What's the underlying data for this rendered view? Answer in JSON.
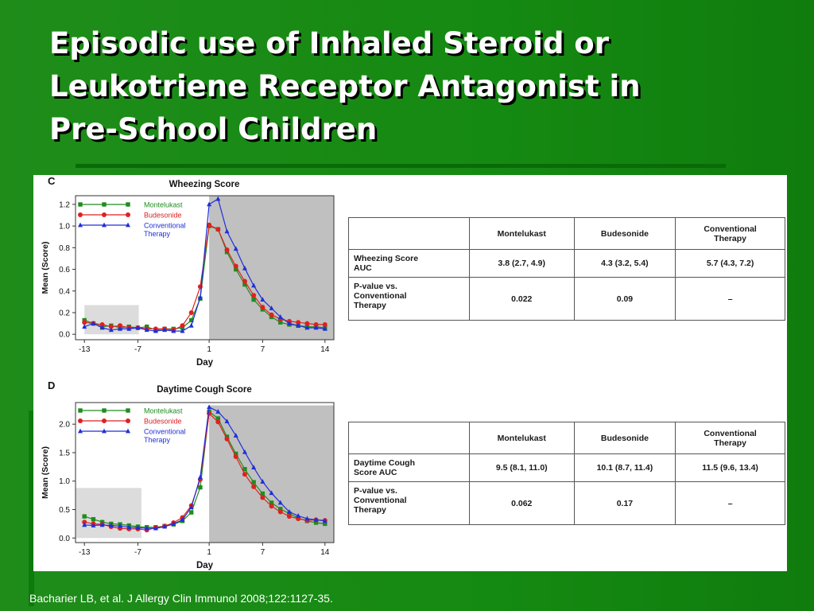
{
  "slide": {
    "title_lines": [
      "Episodic use of Inhaled Steroid or",
      "Leukotriene Receptor Antagonist in",
      "Pre-School Children"
    ],
    "citation": "Bacharier LB, et al. J Allergy Clin Immunol 2008;122:1127-35."
  },
  "tables": [
    {
      "headers": [
        "",
        "Montelukast",
        "Budesonide",
        "Conventional\nTherapy"
      ],
      "rows": [
        {
          "label": "Wheezing Score\nAUC",
          "cells": [
            "3.8 (2.7, 4.9)",
            "4.3 (3.2, 5.4)",
            "5.7 (4.3, 7.2)"
          ]
        },
        {
          "label": "P-value vs.\nConventional\nTherapy",
          "cells": [
            "0.022",
            "0.09",
            "–"
          ]
        }
      ]
    },
    {
      "headers": [
        "",
        "Montelukast",
        "Budesonide",
        "Conventional\nTherapy"
      ],
      "rows": [
        {
          "label": "Daytime Cough\nScore AUC",
          "cells": [
            "9.5 (8.1, 11.0)",
            "10.1 (8.7, 11.4)",
            "11.5 (9.6, 13.4)"
          ]
        },
        {
          "label": "P-value vs.\nConventional\nTherapy",
          "cells": [
            "0.062",
            "0.17",
            "–"
          ]
        }
      ]
    }
  ],
  "chart_data": [
    {
      "type": "line",
      "panel_letter": "C",
      "title": "Wheezing Score",
      "xlabel": "Day",
      "ylabel": "Mean (Score)",
      "x_ticks": [
        -13,
        -7,
        1,
        7,
        14
      ],
      "y_ticks": [
        "0.0",
        "0.2",
        "0.4",
        "0.6",
        "0.8",
        "1.0",
        "1.2"
      ],
      "xlim": [
        -14,
        15
      ],
      "ylim": [
        -0.05,
        1.28
      ],
      "grid": false,
      "legend_position": "top-left",
      "shaded_regions": [
        {
          "x": [
            -13,
            -6.9
          ],
          "y": [
            0,
            0.27
          ],
          "color": "#dcdcdc"
        },
        {
          "x": [
            1,
            15
          ],
          "y": [
            -0.05,
            1.28
          ],
          "color": "#c0c0c0"
        }
      ],
      "x": [
        -13,
        -12,
        -11,
        -10,
        -9,
        -8,
        -7,
        -6,
        -5,
        -4,
        -3,
        -2,
        -1,
        0,
        1,
        2,
        3,
        4,
        5,
        6,
        7,
        8,
        9,
        10,
        11,
        12,
        13,
        14
      ],
      "series": [
        {
          "name": "Montelukast",
          "color": "#1e8c1e",
          "marker": "square",
          "values": [
            0.13,
            0.1,
            0.07,
            0.08,
            0.06,
            0.07,
            0.06,
            0.07,
            0.04,
            0.05,
            0.05,
            0.06,
            0.13,
            0.33,
            1.0,
            0.97,
            0.76,
            0.6,
            0.46,
            0.32,
            0.23,
            0.16,
            0.11,
            0.09,
            0.08,
            0.07,
            0.07,
            0.06
          ]
        },
        {
          "name": "Budesonide",
          "color": "#e02020",
          "marker": "circle",
          "values": [
            0.11,
            0.1,
            0.09,
            0.07,
            0.08,
            0.06,
            0.06,
            0.05,
            0.05,
            0.05,
            0.04,
            0.08,
            0.2,
            0.44,
            1.01,
            0.97,
            0.78,
            0.63,
            0.49,
            0.36,
            0.25,
            0.18,
            0.14,
            0.12,
            0.11,
            0.1,
            0.09,
            0.09
          ]
        },
        {
          "name": "Conventional\nTherapy",
          "color": "#1f2fd8",
          "marker": "triangle",
          "values": [
            0.07,
            0.1,
            0.06,
            0.04,
            0.05,
            0.05,
            0.06,
            0.04,
            0.03,
            0.04,
            0.03,
            0.03,
            0.08,
            0.34,
            1.2,
            1.25,
            0.95,
            0.79,
            0.61,
            0.45,
            0.32,
            0.24,
            0.16,
            0.1,
            0.08,
            0.06,
            0.06,
            0.05
          ]
        }
      ]
    },
    {
      "type": "line",
      "panel_letter": "D",
      "title": "Daytime Cough Score",
      "xlabel": "Day",
      "ylabel": "Mean (Score)",
      "x_ticks": [
        -13,
        -7,
        1,
        7,
        14
      ],
      "y_ticks": [
        "0.0",
        "0.5",
        "1.0",
        "1.5",
        "2.0"
      ],
      "xlim": [
        -14,
        15
      ],
      "ylim": [
        -0.08,
        2.38
      ],
      "grid": false,
      "legend_position": "top-left",
      "shaded_regions": [
        {
          "x": [
            -14,
            -6.6
          ],
          "y": [
            0,
            0.88
          ],
          "color": "#dcdcdc"
        },
        {
          "x": [
            1,
            15
          ],
          "y": [
            -0.08,
            2.33
          ],
          "color": "#c0c0c0"
        }
      ],
      "x": [
        -13,
        -12,
        -11,
        -10,
        -9,
        -8,
        -7,
        -6,
        -5,
        -4,
        -3,
        -2,
        -1,
        0,
        1,
        2,
        3,
        4,
        5,
        6,
        7,
        8,
        9,
        10,
        11,
        12,
        13,
        14
      ],
      "series": [
        {
          "name": "Montelukast",
          "color": "#1e8c1e",
          "marker": "square",
          "values": [
            0.38,
            0.33,
            0.28,
            0.25,
            0.24,
            0.22,
            0.2,
            0.19,
            0.19,
            0.21,
            0.24,
            0.3,
            0.45,
            0.89,
            2.22,
            2.1,
            1.78,
            1.48,
            1.21,
            0.98,
            0.78,
            0.62,
            0.51,
            0.43,
            0.35,
            0.3,
            0.27,
            0.25
          ]
        },
        {
          "name": "Budesonide",
          "color": "#e02020",
          "marker": "circle",
          "values": [
            0.28,
            0.25,
            0.24,
            0.2,
            0.17,
            0.16,
            0.16,
            0.14,
            0.18,
            0.21,
            0.27,
            0.36,
            0.57,
            1.03,
            2.19,
            2.04,
            1.74,
            1.43,
            1.12,
            0.9,
            0.71,
            0.56,
            0.46,
            0.38,
            0.34,
            0.31,
            0.32,
            0.31
          ]
        },
        {
          "name": "Conventional\nTherapy",
          "color": "#1f2fd8",
          "marker": "triangle",
          "values": [
            0.23,
            0.22,
            0.23,
            0.22,
            0.21,
            0.19,
            0.18,
            0.17,
            0.17,
            0.2,
            0.25,
            0.32,
            0.54,
            1.07,
            2.3,
            2.22,
            2.05,
            1.8,
            1.51,
            1.24,
            0.99,
            0.79,
            0.62,
            0.46,
            0.39,
            0.34,
            0.32,
            0.3
          ]
        }
      ]
    }
  ]
}
